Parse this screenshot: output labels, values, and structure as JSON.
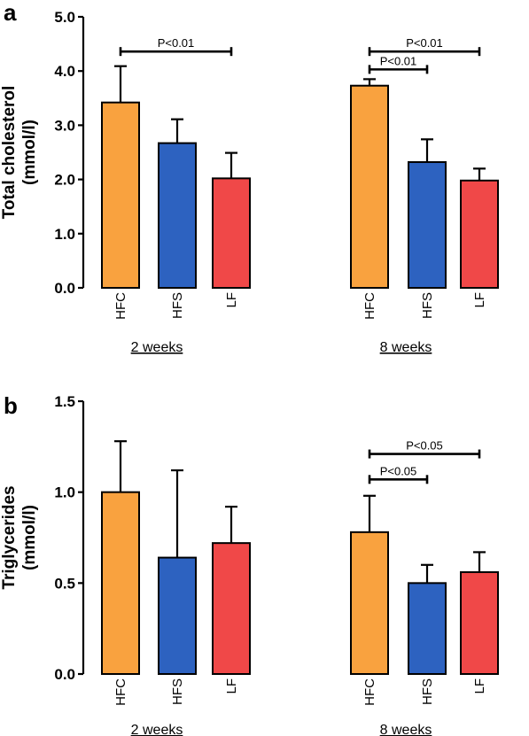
{
  "colors": {
    "HFC": "#f9a23f",
    "HFS": "#2d62c0",
    "LF": "#f04848"
  },
  "chart_data": [
    {
      "type": "bar",
      "panel": "a",
      "ylabel_lines": [
        "Total cholesterol",
        "(mmol/l)"
      ],
      "ylim": [
        0,
        5.0
      ],
      "yticks": [
        "0.0",
        "1.0",
        "2.0",
        "3.0",
        "4.0",
        "5.0"
      ],
      "categories": [
        "HFC",
        "HFS",
        "LF"
      ],
      "groups": [
        {
          "label": "2 weeks",
          "values": [
            3.42,
            2.67,
            2.02
          ],
          "errors": [
            0.67,
            0.44,
            0.47
          ]
        },
        {
          "label": "8 weeks",
          "values": [
            3.73,
            2.32,
            1.98
          ],
          "errors": [
            0.12,
            0.42,
            0.22
          ]
        }
      ],
      "annotations": [
        {
          "text": "P<0.01",
          "group": 0,
          "from": 0,
          "to": 2,
          "y": 4.36
        },
        {
          "text": "P<0.01",
          "group": 1,
          "from": 0,
          "to": 2,
          "y": 4.36
        },
        {
          "text": "P<0.01",
          "group": 1,
          "from": 0,
          "to": 1,
          "y": 4.03
        }
      ]
    },
    {
      "type": "bar",
      "panel": "b",
      "ylabel_lines": [
        "Triglycerides",
        "(mmol/l)"
      ],
      "ylim": [
        0,
        1.5
      ],
      "yticks": [
        "0.0",
        "0.5",
        "1.0",
        "1.5"
      ],
      "categories": [
        "HFC",
        "HFS",
        "LF"
      ],
      "groups": [
        {
          "label": "2 weeks",
          "values": [
            1.0,
            0.64,
            0.72
          ],
          "errors": [
            0.28,
            0.48,
            0.2
          ]
        },
        {
          "label": "8 weeks",
          "values": [
            0.78,
            0.5,
            0.56
          ],
          "errors": [
            0.2,
            0.1,
            0.11
          ]
        }
      ],
      "annotations": [
        {
          "text": "P<0.05",
          "group": 1,
          "from": 0,
          "to": 2,
          "y": 1.21
        },
        {
          "text": "P<0.05",
          "group": 1,
          "from": 0,
          "to": 1,
          "y": 1.07
        }
      ]
    }
  ]
}
